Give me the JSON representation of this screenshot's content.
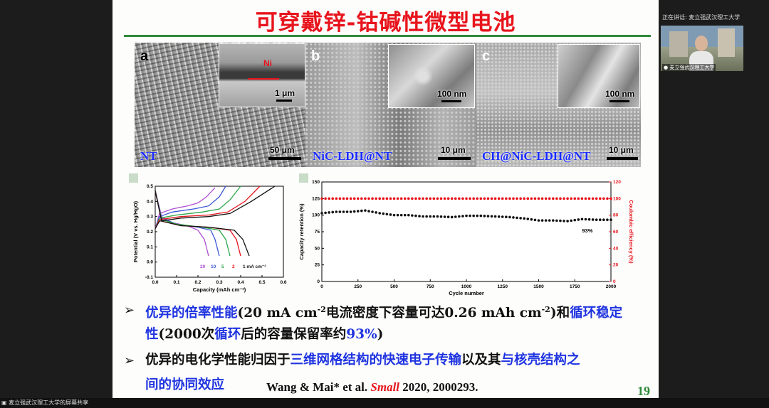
{
  "slide": {
    "title": "可穿戴锌-钴碱性微型电池",
    "page_number": "19",
    "citation": {
      "authors": "Wang & Mai* et al. ",
      "journal": "Small",
      "tail": " 2020, 2000293."
    }
  },
  "sem_panels": [
    {
      "letter": "a",
      "label": "NT",
      "scale": "50 μm",
      "inset_scale": "1 μm",
      "inset_marker": "Ni"
    },
    {
      "letter": "b",
      "label": "NiC-LDH@NT",
      "scale": "10 μm",
      "inset_scale": "100 nm"
    },
    {
      "letter": "c",
      "label": "CH@NiC-LDH@NT",
      "scale": "10 μm",
      "inset_scale": "100 nm"
    }
  ],
  "chart_data": [
    {
      "type": "line",
      "xlabel": "Capacity (mAh cm⁻²)",
      "ylabel": "Potential (V vs. Hg/HgO)",
      "xlim": [
        0.0,
        0.6
      ],
      "ylim": [
        -0.1,
        0.5
      ],
      "x_ticks": [
        "0.0",
        "0.1",
        "0.2",
        "0.3",
        "0.4",
        "0.5",
        "0.6"
      ],
      "y_ticks": [
        "-0.1",
        "0.0",
        "0.1",
        "0.2",
        "0.3",
        "0.4",
        "0.5"
      ],
      "rate_labels": [
        "20",
        "10",
        "5",
        "2",
        "1 mA cm⁻²"
      ],
      "series": [
        {
          "name": "20",
          "color": "#b04fd0",
          "charge": [
            [
              0.0,
              0.22
            ],
            [
              0.02,
              0.32
            ],
            [
              0.08,
              0.35
            ],
            [
              0.15,
              0.37
            ],
            [
              0.2,
              0.39
            ],
            [
              0.24,
              0.43
            ],
            [
              0.28,
              0.49
            ]
          ],
          "discharge": [
            [
              0.0,
              0.47
            ],
            [
              0.03,
              0.3
            ],
            [
              0.08,
              0.26
            ],
            [
              0.15,
              0.24
            ],
            [
              0.2,
              0.21
            ],
            [
              0.23,
              0.15
            ],
            [
              0.25,
              0.04
            ]
          ]
        },
        {
          "name": "10",
          "color": "#3a55d8",
          "charge": [
            [
              0.0,
              0.22
            ],
            [
              0.02,
              0.3
            ],
            [
              0.08,
              0.33
            ],
            [
              0.18,
              0.35
            ],
            [
              0.25,
              0.37
            ],
            [
              0.3,
              0.43
            ],
            [
              0.33,
              0.5
            ]
          ],
          "discharge": [
            [
              0.0,
              0.47
            ],
            [
              0.03,
              0.29
            ],
            [
              0.1,
              0.25
            ],
            [
              0.2,
              0.23
            ],
            [
              0.26,
              0.21
            ],
            [
              0.28,
              0.15
            ],
            [
              0.3,
              0.04
            ]
          ]
        },
        {
          "name": "5",
          "color": "#2fa84a",
          "charge": [
            [
              0.0,
              0.22
            ],
            [
              0.02,
              0.29
            ],
            [
              0.1,
              0.31
            ],
            [
              0.22,
              0.33
            ],
            [
              0.3,
              0.35
            ],
            [
              0.35,
              0.41
            ],
            [
              0.4,
              0.5
            ]
          ],
          "discharge": [
            [
              0.0,
              0.47
            ],
            [
              0.03,
              0.28
            ],
            [
              0.1,
              0.25
            ],
            [
              0.22,
              0.23
            ],
            [
              0.3,
              0.21
            ],
            [
              0.33,
              0.15
            ],
            [
              0.35,
              0.04
            ]
          ]
        },
        {
          "name": "2",
          "color": "#e8141c",
          "charge": [
            [
              0.0,
              0.22
            ],
            [
              0.02,
              0.28
            ],
            [
              0.12,
              0.3
            ],
            [
              0.25,
              0.31
            ],
            [
              0.34,
              0.33
            ],
            [
              0.42,
              0.4
            ],
            [
              0.49,
              0.5
            ]
          ],
          "discharge": [
            [
              0.0,
              0.47
            ],
            [
              0.03,
              0.27
            ],
            [
              0.12,
              0.24
            ],
            [
              0.25,
              0.23
            ],
            [
              0.35,
              0.21
            ],
            [
              0.38,
              0.15
            ],
            [
              0.4,
              0.04
            ]
          ]
        },
        {
          "name": "1 mA cm⁻²",
          "color": "#111111",
          "charge": [
            [
              0.0,
              0.22
            ],
            [
              0.02,
              0.27
            ],
            [
              0.12,
              0.29
            ],
            [
              0.25,
              0.3
            ],
            [
              0.35,
              0.32
            ],
            [
              0.45,
              0.4
            ],
            [
              0.56,
              0.5
            ]
          ],
          "discharge": [
            [
              0.0,
              0.47
            ],
            [
              0.03,
              0.27
            ],
            [
              0.12,
              0.24
            ],
            [
              0.25,
              0.23
            ],
            [
              0.37,
              0.21
            ],
            [
              0.41,
              0.15
            ],
            [
              0.44,
              0.04
            ]
          ]
        }
      ]
    },
    {
      "type": "scatter",
      "xlabel": "Cycle number",
      "ylabel": "Capacity retention (%)",
      "y2label": "Coulombic efficiency (%)",
      "xlim": [
        0,
        2000
      ],
      "ylim": [
        0,
        150
      ],
      "y2lim": [
        0,
        120
      ],
      "x_ticks": [
        "0",
        "250",
        "500",
        "750",
        "1000",
        "1250",
        "1500",
        "1750",
        "2000"
      ],
      "y_ticks": [
        "0",
        "25",
        "50",
        "75",
        "100",
        "125",
        "150"
      ],
      "y2_ticks": [
        "0",
        "20",
        "40",
        "60",
        "80",
        "100",
        "120"
      ],
      "annotation": "93%",
      "retention": [
        [
          0,
          103
        ],
        [
          100,
          105
        ],
        [
          200,
          105
        ],
        [
          300,
          107
        ],
        [
          400,
          103
        ],
        [
          500,
          100
        ],
        [
          600,
          100
        ],
        [
          700,
          98
        ],
        [
          800,
          98
        ],
        [
          900,
          97
        ],
        [
          1000,
          99
        ],
        [
          1100,
          99
        ],
        [
          1200,
          98
        ],
        [
          1300,
          97
        ],
        [
          1400,
          95
        ],
        [
          1500,
          92
        ],
        [
          1600,
          92
        ],
        [
          1700,
          91
        ],
        [
          1800,
          94
        ],
        [
          1900,
          93
        ],
        [
          2000,
          93
        ]
      ],
      "efficiency": [
        [
          0,
          100
        ],
        [
          250,
          100
        ],
        [
          500,
          100
        ],
        [
          750,
          100
        ],
        [
          1000,
          100
        ],
        [
          1250,
          100
        ],
        [
          1500,
          100
        ],
        [
          1750,
          100
        ],
        [
          2000,
          100
        ]
      ]
    }
  ],
  "bullets": {
    "b1_prefix": "优异的倍率性能",
    "b1_mid": "(20 mA cm",
    "b1_sup1": "-2",
    "b1_mid2": "电流密度下容量可达",
    "b1_val": "0.26 mAh cm",
    "b1_sup2": "-2",
    "b1_close": ")和",
    "b1_stab": "循环稳定",
    "b1_l2a": "性",
    "b1_l2b": "(2000次",
    "b1_l2c": "循环",
    "b1_l2d": "后的容量保留率约",
    "b1_l2e": "93%",
    "b1_l2f": ")",
    "b2_a": "优异的电化学性能归因于",
    "b2_b": "三维网格结构的快速电子传输",
    "b2_c": "以及其",
    "b2_d": "与核壳结构之",
    "b2_e": "间的协同效应"
  },
  "sidebar": {
    "presenter_label": "正在讲话: 麦立强武汉理工大学",
    "camera_name": "麦立强武汉理工大学"
  },
  "bottom": {
    "share_label": "麦立强武汉理工大学的屏幕共享"
  },
  "colors": {
    "title": "#e8141c",
    "accent_blue": "#1f34e0",
    "rule_green": "#2f8a3a"
  }
}
